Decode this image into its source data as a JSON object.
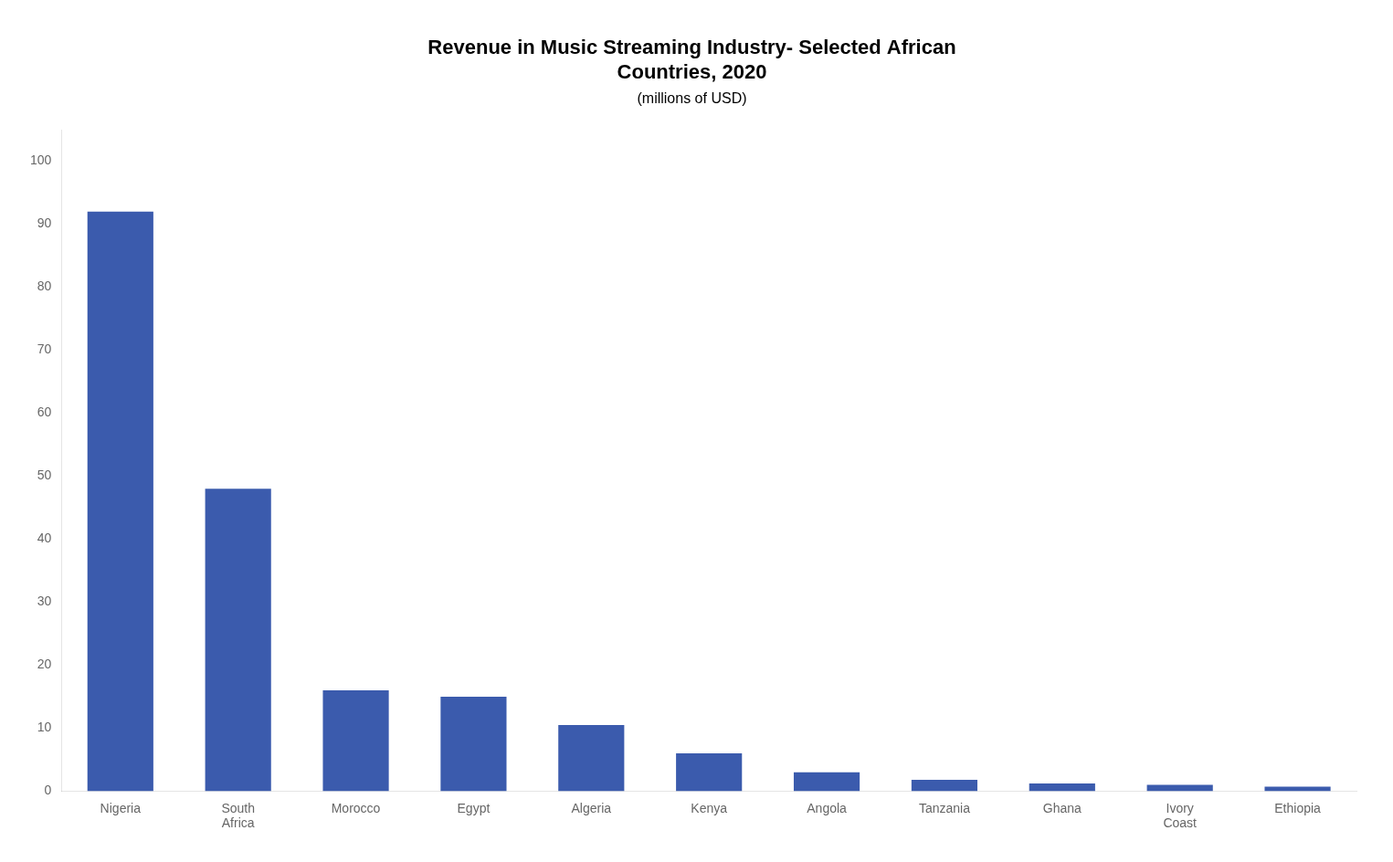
{
  "chart_data": {
    "type": "bar",
    "title": "Revenue in Music Streaming Industry- Selected African\nCountries, 2020",
    "subtitle": "(millions of USD)",
    "categories": [
      "Nigeria",
      "South\nAfrica",
      "Morocco",
      "Egypt",
      "Algeria",
      "Kenya",
      "Angola",
      "Tanzania",
      "Ghana",
      "Ivory\nCoast",
      "Ethiopia"
    ],
    "values": [
      92,
      48,
      16,
      15,
      10.5,
      6,
      3,
      1.8,
      1.2,
      1.0,
      0.7
    ],
    "color": "#3B5BAD",
    "ylim": [
      0,
      105
    ],
    "yticks": [
      0,
      10,
      20,
      30,
      40,
      50,
      60,
      70,
      80,
      90,
      100
    ],
    "grid": false
  }
}
